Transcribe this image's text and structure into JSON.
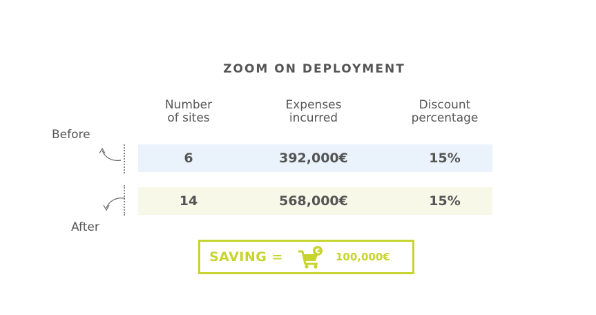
{
  "title": "ZOOM ON DEPLOYMENT",
  "columns": {
    "sites": [
      "Number",
      "of sites"
    ],
    "expenses": [
      "Expenses",
      "incurred"
    ],
    "discount": [
      "Discount",
      "percentage"
    ]
  },
  "rows": {
    "before": {
      "label": "Before",
      "sites": "6",
      "expenses": "392,000€",
      "discount": "15%"
    },
    "after": {
      "label": "After",
      "sites": "14",
      "expenses": "568,000€",
      "discount": "15%"
    }
  },
  "saving": {
    "label": "SAVING =",
    "value": "100,000€",
    "icon": "shopping-cart-euro-icon"
  },
  "colors": {
    "text": "#555555",
    "accent": "#c8d42e",
    "before_row_bg": "#eaf3fb",
    "after_row_bg": "#f7f8e8"
  }
}
